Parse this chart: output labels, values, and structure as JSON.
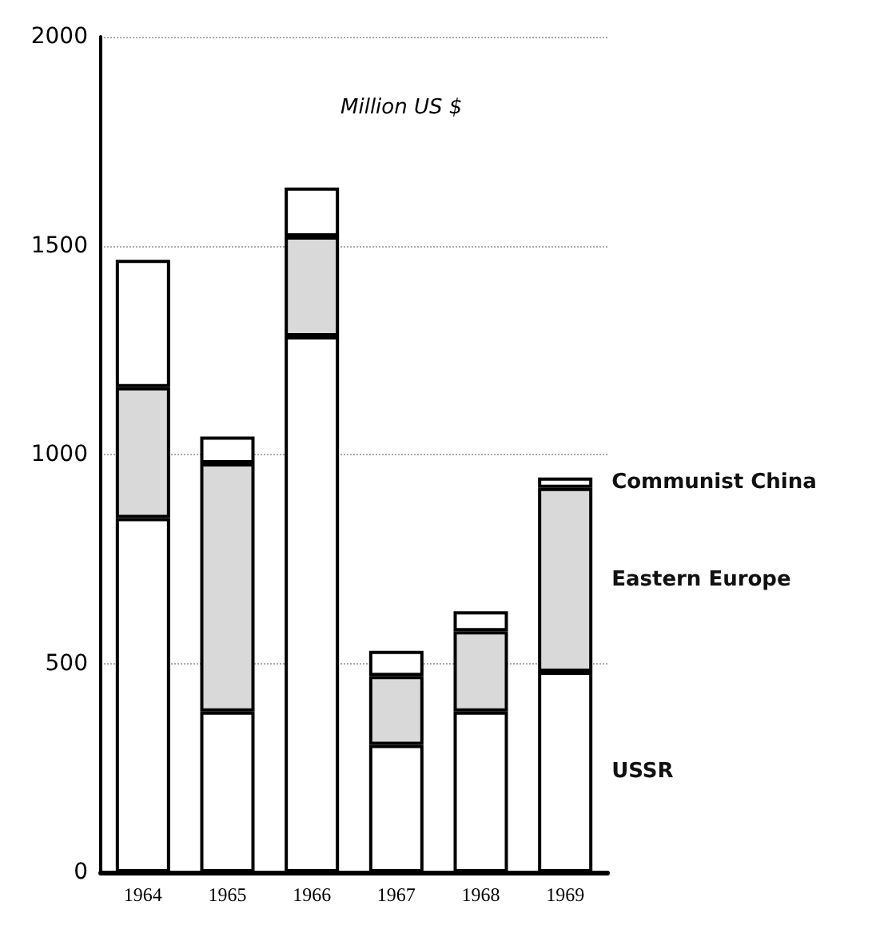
{
  "chart_data": {
    "type": "bar",
    "title": "Million US $",
    "stacked": true,
    "categories": [
      "1964",
      "1965",
      "1966",
      "1967",
      "1968",
      "1969"
    ],
    "series": [
      {
        "name": "USSR",
        "color": "#ffffff",
        "values": [
          848,
          385,
          1283,
          305,
          385,
          480
        ]
      },
      {
        "name": "Eastern Europe",
        "color": "#d9d9d9",
        "values": [
          313,
          594,
          239,
          165,
          192,
          440
        ]
      },
      {
        "name": "Communist China",
        "color": "#ffffff",
        "values": [
          305,
          64,
          117,
          60,
          48,
          25
        ]
      }
    ],
    "ylim": [
      0,
      2000
    ],
    "yticks": [
      0,
      500,
      1000,
      1500,
      2000
    ],
    "grid": "y",
    "legend": false
  }
}
